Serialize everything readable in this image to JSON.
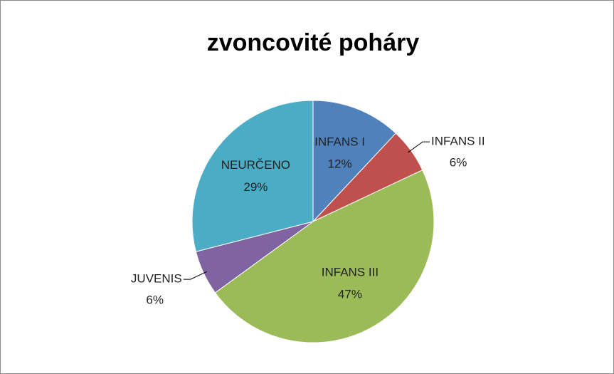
{
  "chart_data": {
    "type": "pie",
    "title": "zvoncovité poháry",
    "categories": [
      "INFANS I",
      "INFANS II",
      "INFANS III",
      "JUVENIS",
      "NEURČENO"
    ],
    "values": [
      12,
      6,
      47,
      6,
      29
    ],
    "value_labels": [
      "12%",
      "6%",
      "47%",
      "6%",
      "29%"
    ],
    "colors": [
      "#4f81bd",
      "#c0504d",
      "#9bbb59",
      "#8064a2",
      "#4bacc6"
    ]
  }
}
